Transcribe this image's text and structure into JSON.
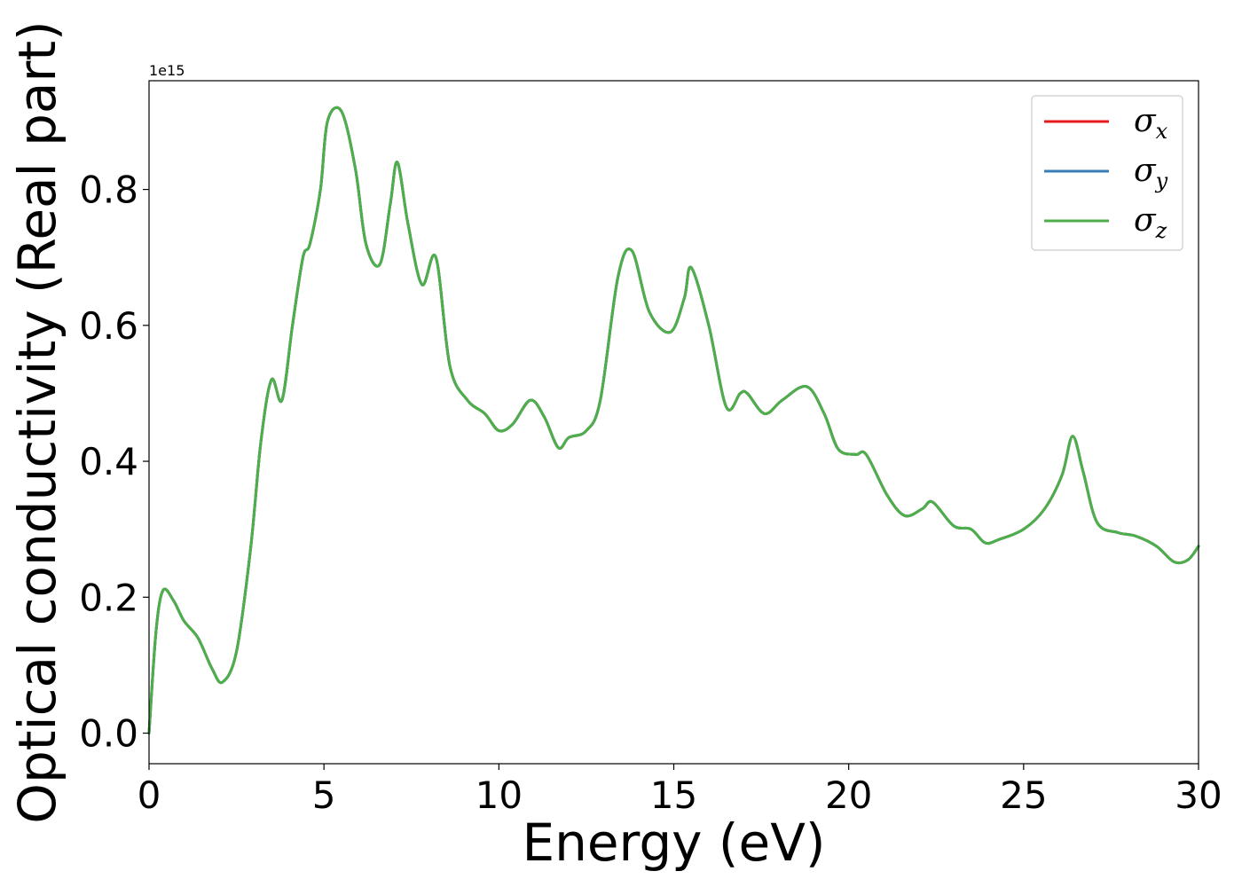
{
  "chart_data": {
    "type": "line",
    "xlabel": "Energy (eV)",
    "ylabel": "Optical conductivity (Real part)",
    "y_offset_label": "1e15",
    "xlim": [
      0,
      30
    ],
    "ylim": [
      -0.045,
      0.96
    ],
    "x_ticks": [
      0,
      5,
      10,
      15,
      20,
      25,
      30
    ],
    "x_tick_labels": [
      "0",
      "5",
      "10",
      "15",
      "20",
      "25",
      "30"
    ],
    "y_ticks": [
      0.0,
      0.2,
      0.4,
      0.6,
      0.8
    ],
    "y_tick_labels": [
      "0.0",
      "0.2",
      "0.4",
      "0.6",
      "0.8"
    ],
    "grid": false,
    "legend_position": "top-right",
    "x": [
      0,
      0.2,
      0.4,
      0.7,
      1.0,
      1.4,
      1.8,
      2.1,
      2.5,
      2.9,
      3.2,
      3.5,
      3.8,
      4.1,
      4.4,
      4.6,
      4.9,
      5.1,
      5.5,
      5.9,
      6.2,
      6.6,
      6.9,
      7.1,
      7.4,
      7.8,
      8.2,
      8.6,
      9.1,
      9.6,
      10.0,
      10.4,
      10.9,
      11.3,
      11.7,
      12.0,
      12.5,
      12.9,
      13.4,
      13.8,
      14.3,
      14.9,
      15.3,
      15.5,
      16.0,
      16.5,
      16.9,
      17.1,
      17.6,
      18.1,
      18.8,
      19.3,
      19.7,
      20.2,
      20.5,
      21.1,
      21.6,
      22.1,
      22.4,
      23.0,
      23.5,
      23.9,
      24.3,
      25.0,
      25.6,
      26.1,
      26.4,
      26.7,
      27.1,
      27.7,
      28.2,
      28.8,
      29.3,
      29.7,
      30.0
    ],
    "series": [
      {
        "name": "σx",
        "color": "#e41a1c",
        "values": [
          0.0,
          0.15,
          0.21,
          0.195,
          0.165,
          0.14,
          0.095,
          0.075,
          0.12,
          0.27,
          0.43,
          0.52,
          0.49,
          0.6,
          0.7,
          0.72,
          0.8,
          0.9,
          0.915,
          0.83,
          0.72,
          0.69,
          0.78,
          0.84,
          0.75,
          0.66,
          0.7,
          0.54,
          0.49,
          0.47,
          0.445,
          0.455,
          0.49,
          0.465,
          0.42,
          0.435,
          0.445,
          0.49,
          0.67,
          0.71,
          0.62,
          0.59,
          0.64,
          0.685,
          0.6,
          0.48,
          0.5,
          0.5,
          0.47,
          0.49,
          0.51,
          0.47,
          0.418,
          0.41,
          0.41,
          0.35,
          0.32,
          0.33,
          0.34,
          0.305,
          0.3,
          0.28,
          0.285,
          0.3,
          0.33,
          0.38,
          0.437,
          0.385,
          0.31,
          0.295,
          0.29,
          0.275,
          0.252,
          0.255,
          0.275
        ]
      },
      {
        "name": "σy",
        "color": "#377eb8",
        "values": [
          0.0,
          0.15,
          0.21,
          0.195,
          0.165,
          0.14,
          0.095,
          0.075,
          0.12,
          0.27,
          0.43,
          0.52,
          0.49,
          0.6,
          0.7,
          0.72,
          0.8,
          0.9,
          0.915,
          0.83,
          0.72,
          0.69,
          0.78,
          0.84,
          0.75,
          0.66,
          0.7,
          0.54,
          0.49,
          0.47,
          0.445,
          0.455,
          0.49,
          0.465,
          0.42,
          0.435,
          0.445,
          0.49,
          0.67,
          0.71,
          0.62,
          0.59,
          0.64,
          0.685,
          0.6,
          0.48,
          0.5,
          0.5,
          0.47,
          0.49,
          0.51,
          0.47,
          0.418,
          0.41,
          0.41,
          0.35,
          0.32,
          0.33,
          0.34,
          0.305,
          0.3,
          0.28,
          0.285,
          0.3,
          0.33,
          0.38,
          0.437,
          0.385,
          0.31,
          0.295,
          0.29,
          0.275,
          0.252,
          0.255,
          0.275
        ]
      },
      {
        "name": "σz",
        "color": "#4daf4a",
        "values": [
          0.0,
          0.15,
          0.21,
          0.195,
          0.165,
          0.14,
          0.095,
          0.075,
          0.12,
          0.27,
          0.43,
          0.52,
          0.49,
          0.6,
          0.7,
          0.72,
          0.8,
          0.9,
          0.915,
          0.83,
          0.72,
          0.69,
          0.78,
          0.84,
          0.75,
          0.66,
          0.7,
          0.54,
          0.49,
          0.47,
          0.445,
          0.455,
          0.49,
          0.465,
          0.42,
          0.435,
          0.445,
          0.49,
          0.67,
          0.71,
          0.62,
          0.59,
          0.64,
          0.685,
          0.6,
          0.48,
          0.5,
          0.5,
          0.47,
          0.49,
          0.51,
          0.47,
          0.418,
          0.41,
          0.41,
          0.35,
          0.32,
          0.33,
          0.34,
          0.305,
          0.3,
          0.28,
          0.285,
          0.3,
          0.33,
          0.38,
          0.437,
          0.385,
          0.31,
          0.295,
          0.29,
          0.275,
          0.252,
          0.255,
          0.275
        ]
      }
    ],
    "legend": [
      {
        "symbol": "σ",
        "subscript": "x",
        "color": "#e41a1c"
      },
      {
        "symbol": "σ",
        "subscript": "y",
        "color": "#377eb8"
      },
      {
        "symbol": "σ",
        "subscript": "z",
        "color": "#4daf4a"
      }
    ]
  }
}
